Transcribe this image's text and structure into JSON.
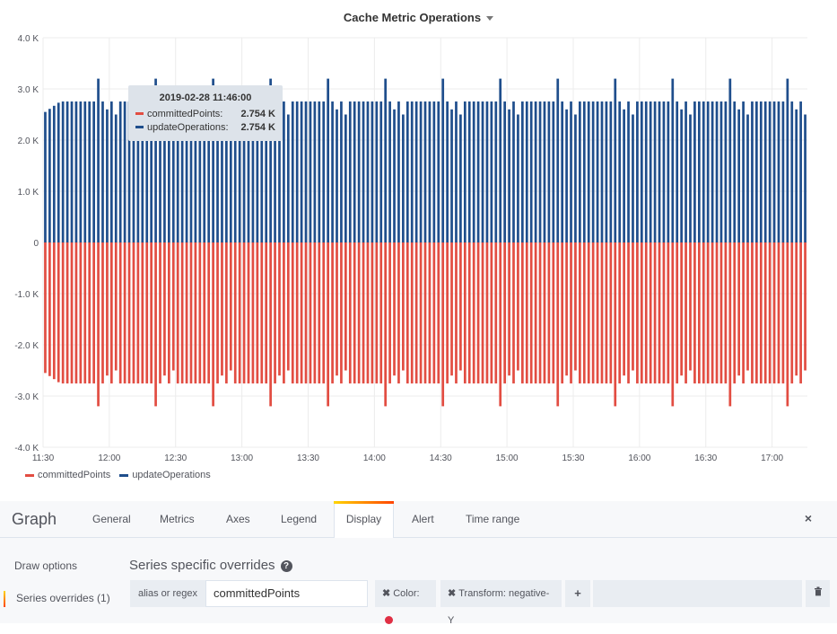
{
  "panel": {
    "title": "Cache Metric Operations"
  },
  "tooltip": {
    "time": "2019-02-28 11:46:00",
    "rows": [
      {
        "name": "committedPoints:",
        "value": "2.754 K"
      },
      {
        "name": "updateOperations:",
        "value": "2.754 K"
      }
    ]
  },
  "legend": {
    "items": [
      "committedPoints",
      "updateOperations"
    ]
  },
  "colors": {
    "committedPoints": "#e24d42",
    "updateOperations": "#1f4e8c"
  },
  "chart_data": {
    "type": "bar",
    "x_ticks": [
      "11:30",
      "12:00",
      "12:30",
      "13:00",
      "13:30",
      "14:00",
      "14:30",
      "15:00",
      "15:30",
      "16:00",
      "16:30",
      "17:00"
    ],
    "y_ticks": [
      "4.0 K",
      "3.0 K",
      "2.0 K",
      "1.0 K",
      "0",
      "-1.0 K",
      "-2.0 K",
      "-3.0 K",
      "-4.0 K"
    ],
    "ylim": [
      -4000,
      4000
    ],
    "xlim_minutes": [
      690,
      1036
    ],
    "bar_interval_minutes": 2,
    "series": [
      {
        "name": "updateOperations",
        "sign": 1,
        "typical": 2754,
        "peak": 3200
      },
      {
        "name": "committedPoints",
        "sign": -1,
        "typical": 2754,
        "peak": 3200
      }
    ]
  },
  "editor": {
    "title": "Graph",
    "tabs": [
      "General",
      "Metrics",
      "Axes",
      "Legend",
      "Display",
      "Alert",
      "Time range"
    ],
    "active_tab": "Display",
    "side": [
      "Draw options",
      "Series overrides (1)"
    ],
    "section_title": "Series specific overrides",
    "override": {
      "label": "alias or regex",
      "value": "committedPoints",
      "color_label": "Color:",
      "transform_label": "Transform: negative-Y",
      "plus": "+",
      "close_icon": "×"
    }
  }
}
